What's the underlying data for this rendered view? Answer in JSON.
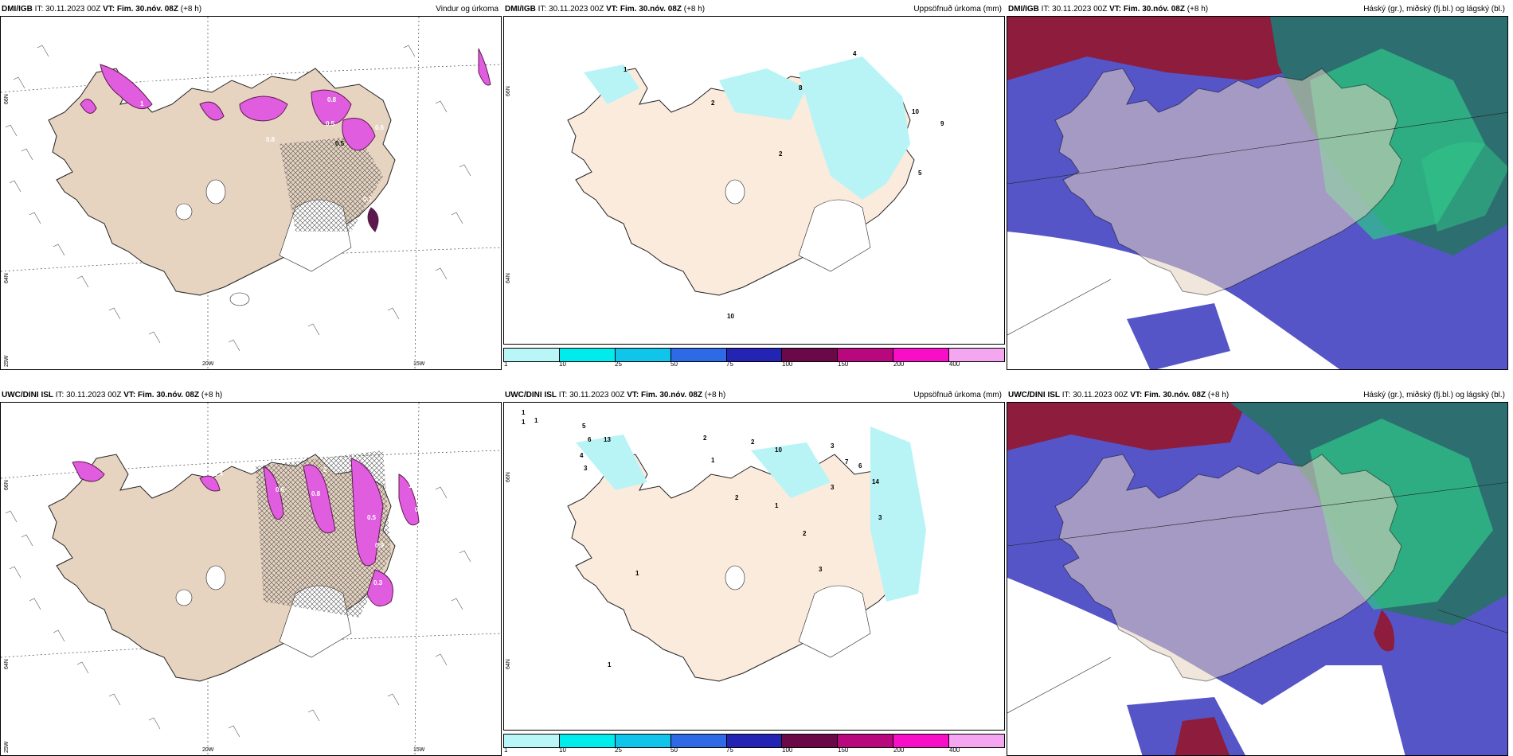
{
  "colors": {
    "land": "#e6d3c0",
    "land_light": "#f6e9dc",
    "precip_light": "#b8f4f6",
    "magenta": "#e05de0",
    "darkpurple": "#5c1a4c",
    "cloud_blue": "#5555c8",
    "cloud_darkred": "#8e1c3c",
    "cloud_green": "#2fc88a",
    "cloud_teal": "#2d6e70"
  },
  "panels": [
    {
      "model": "DMI/IGB",
      "it": "IT: 30.11.2023 00Z",
      "vt": "VT: Fim. 30.nóv. 08Z",
      "lead": "(+8 h)",
      "product": "Vindur og úrkoma",
      "lat_labels": [
        "66N",
        "64N",
        "25W"
      ],
      "lon_labels": [
        "20W",
        "15W"
      ],
      "values": [
        "1.0",
        "1",
        "1",
        "0.8",
        "0.5",
        "0.6",
        "0.5",
        "0.1",
        "1.9",
        "0.8"
      ]
    },
    {
      "model": "DMI/IGB",
      "it": "IT: 30.11.2023 00Z",
      "vt": "VT: Fim. 30.nóv. 08Z",
      "lead": "(+8 h)",
      "product": "Uppsöfnuð úrkoma (mm)",
      "lat_labels": [
        "66N",
        "64N"
      ],
      "values": [
        "4",
        "2",
        "1",
        "8",
        "10",
        "9",
        "2",
        "5",
        "10"
      ],
      "colorbar": {
        "colors": [
          "#b9f6f8",
          "#00ecec",
          "#10c4ea",
          "#2e6ae6",
          "#2424b4",
          "#6a0848",
          "#b8087e",
          "#f80ec6",
          "#f4a6f0"
        ],
        "ticks": [
          "1",
          "10",
          "25",
          "50",
          "75",
          "100",
          "150",
          "200",
          "400"
        ]
      }
    },
    {
      "model": "DMI/IGB",
      "it": "IT: 30.11.2023 00Z",
      "vt": "VT: Fim. 30.nóv. 08Z",
      "lead": "(+8 h)",
      "product": "Háský (gr.), miðský (fj.bl.) og lágský (bl.)"
    },
    {
      "model": "UWC/DINI ISL",
      "it": "IT: 30.11.2023 00Z",
      "vt": "VT: Fim. 30.nóv. 08Z",
      "lead": "(+8 h)",
      "product": "",
      "lat_labels": [
        "66N",
        "64N",
        "25W"
      ],
      "lon_labels": [
        "20W",
        "15W"
      ],
      "values": [
        "0.4",
        "0.6",
        "0.8",
        "1.3",
        "2",
        "0.5",
        "0.9",
        "0.7",
        "1.1",
        "0.3"
      ]
    },
    {
      "model": "UWC/DINI ISL",
      "it": "IT: 30.11.2023 00Z",
      "vt": "VT: Fim. 30.nóv. 08Z",
      "lead": "(+8 h)",
      "product": "Uppsöfnuð úrkoma (mm)",
      "lat_labels": [
        "66N",
        "64N"
      ],
      "values": [
        "1",
        "1",
        "1",
        "5",
        "6",
        "13",
        "4",
        "3",
        "2",
        "1",
        "2",
        "10",
        "3",
        "7",
        "6",
        "14",
        "3",
        "3",
        "2",
        "1",
        "2",
        "3",
        "1",
        "1"
      ],
      "colorbar": {
        "colors": [
          "#b9f6f8",
          "#00ecec",
          "#10c4ea",
          "#2e6ae6",
          "#2424b4",
          "#6a0848",
          "#b8087e",
          "#f80ec6",
          "#f4a6f0"
        ],
        "ticks": [
          "1",
          "10",
          "25",
          "50",
          "75",
          "100",
          "150",
          "200",
          "400"
        ]
      }
    },
    {
      "model": "UWC/DINI ISL",
      "it": "IT: 30.11.2023 00Z",
      "vt": "VT: Fim. 30.nóv. 08Z",
      "lead": "(+8 h)",
      "product": "Háský (gr.), miðský (fj.bl.) og lágský (bl.)"
    }
  ]
}
